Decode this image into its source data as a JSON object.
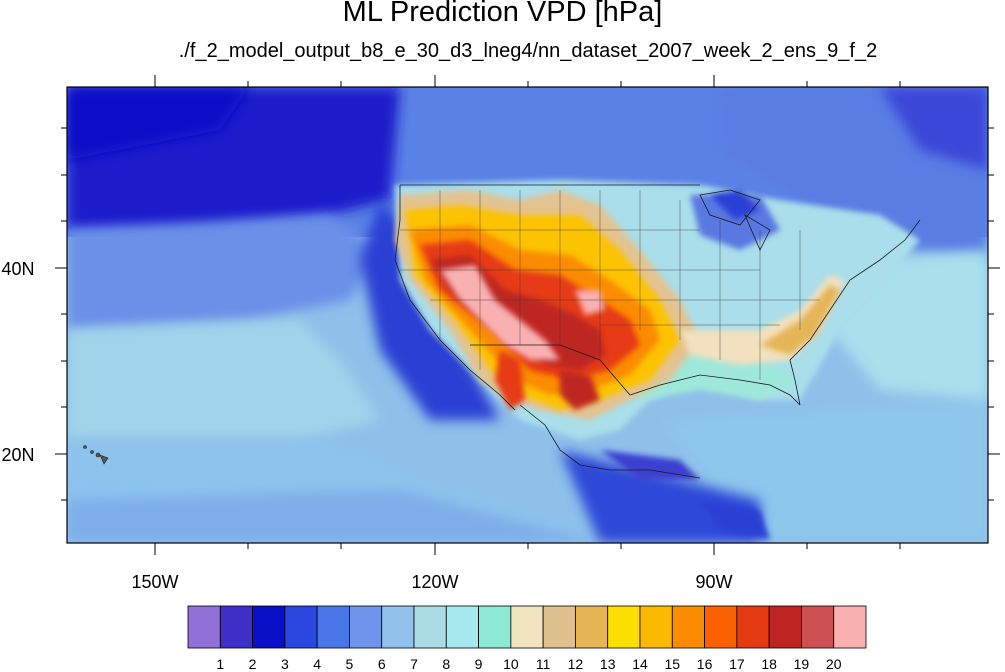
{
  "title": "ML Prediction VPD [hPa]",
  "subtitle": "./f_2_model_output_b8_e_30_d3_lneg4/nn_dataset_2007_week_2_ens_9_f_2",
  "lat_labels": [
    "40N",
    "20N"
  ],
  "lon_labels": [
    "150W",
    "120W",
    "90W"
  ],
  "colorbar": {
    "colors": [
      "#9170D8",
      "#3D2FC7",
      "#0A10C8",
      "#2A47E0",
      "#4A77E8",
      "#6E95EA",
      "#92C2EC",
      "#ABDCE4",
      "#A6EAF0",
      "#8EE8D6",
      "#F3E4C0",
      "#DFC190",
      "#E5B556",
      "#FADF00",
      "#FDB900",
      "#FB8C00",
      "#FC6100",
      "#E63A12",
      "#BE2522",
      "#CD5052",
      "#F8B0B0"
    ],
    "labels": [
      "1",
      "2",
      "3",
      "4",
      "5",
      "6",
      "7",
      "8",
      "9",
      "10",
      "11",
      "12",
      "13",
      "14",
      "15",
      "16",
      "17",
      "18",
      "19",
      "20"
    ]
  }
}
